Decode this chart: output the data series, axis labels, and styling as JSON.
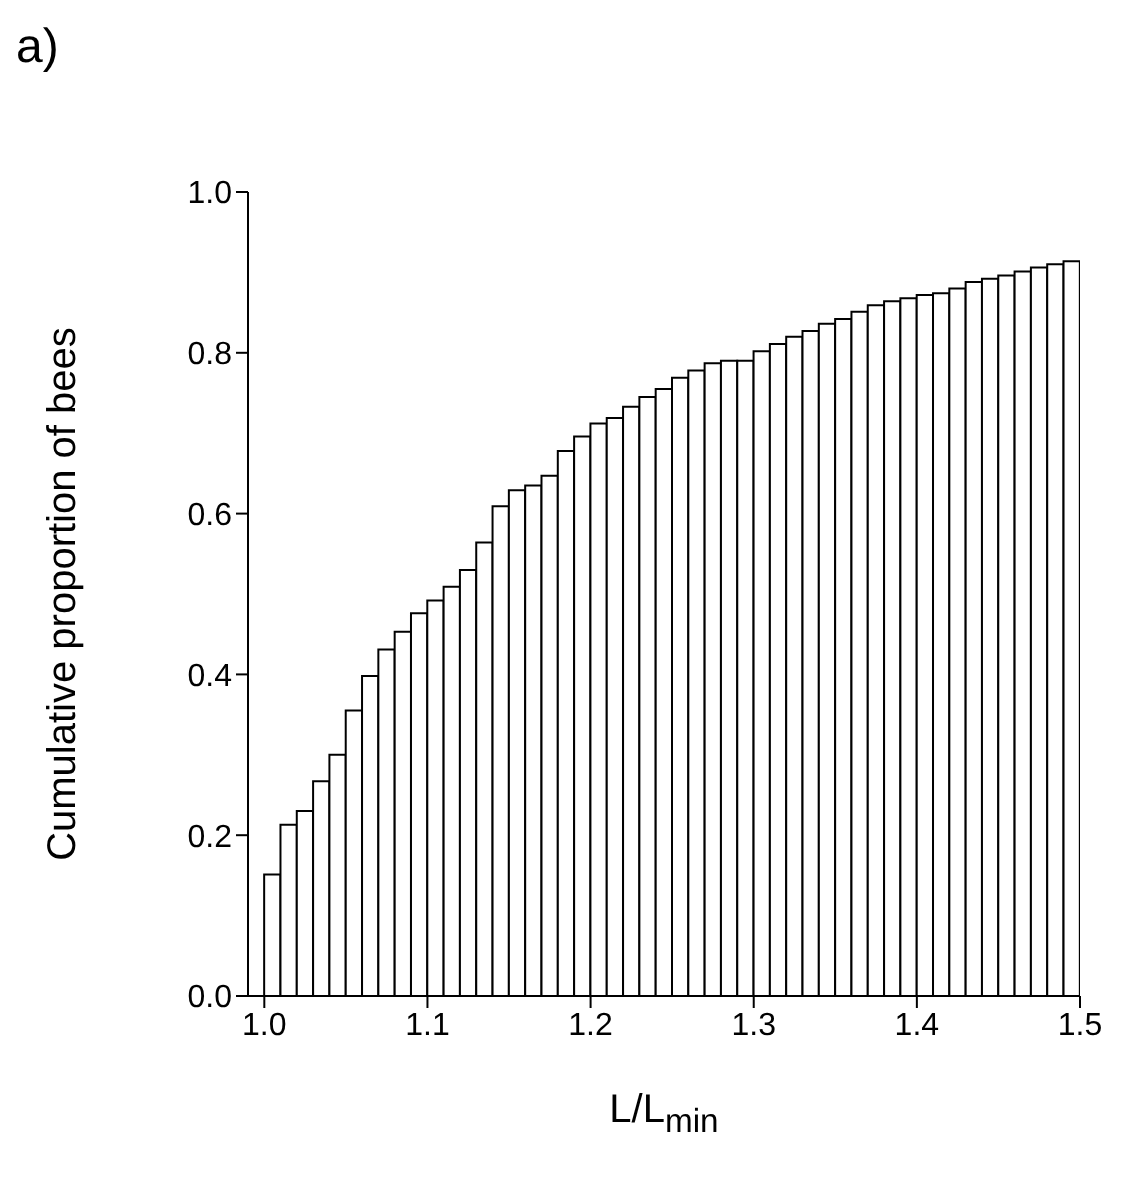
{
  "chart_data": {
    "type": "histogram",
    "title": "a)",
    "xlabel": "L/L$_{min}$",
    "ylabel": "Cumulative proportion of bees",
    "bins": [
      1.0,
      1.01,
      1.02,
      1.03,
      1.04,
      1.05,
      1.06,
      1.07,
      1.08,
      1.09,
      1.1,
      1.11,
      1.12,
      1.13,
      1.14,
      1.15,
      1.16,
      1.17,
      1.18,
      1.19,
      1.2,
      1.21,
      1.22,
      1.23,
      1.24,
      1.25,
      1.26,
      1.27,
      1.28,
      1.29,
      1.3,
      1.31,
      1.32,
      1.33,
      1.34,
      1.35,
      1.36,
      1.37,
      1.38,
      1.39,
      1.4,
      1.41,
      1.42,
      1.43,
      1.44,
      1.45,
      1.46,
      1.47,
      1.48,
      1.49,
      1.5
    ],
    "values": [
      0.151,
      0.213,
      0.23,
      0.267,
      0.3,
      0.355,
      0.398,
      0.431,
      0.453,
      0.476,
      0.492,
      0.509,
      0.53,
      0.564,
      0.609,
      0.629,
      0.635,
      0.647,
      0.678,
      0.696,
      0.712,
      0.719,
      0.733,
      0.745,
      0.755,
      0.769,
      0.778,
      0.787,
      0.79,
      0.79,
      0.802,
      0.811,
      0.82,
      0.827,
      0.836,
      0.842,
      0.851,
      0.859,
      0.864,
      0.868,
      0.872,
      0.874,
      0.88,
      0.888,
      0.892,
      0.896,
      0.901,
      0.906,
      0.91,
      0.914
    ],
    "color": "#ffffff",
    "xlim": [
      0.99,
      1.5
    ],
    "ylim": [
      0,
      1
    ],
    "xticks": [
      {
        "value": 1.0,
        "label": "1.0"
      },
      1.1,
      1.2,
      1.3,
      1.4,
      {
        "value": 1.5,
        "label": "1.5"
      }
    ],
    "yticks": [
      {
        "value": 0,
        "label": "0.0"
      },
      0.2,
      0.4,
      0.6,
      0.8,
      {
        "value": 1,
        "label": "1.0"
      }
    ],
    "grid": false
  }
}
